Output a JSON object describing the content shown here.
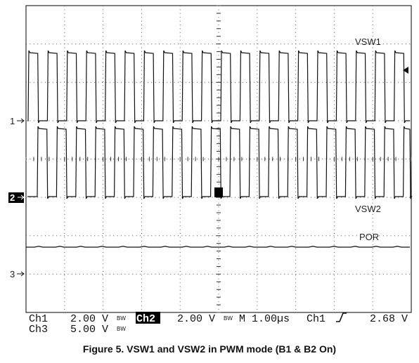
{
  "waveform_labels": [
    "VSW1",
    "VSW2",
    "POR"
  ],
  "channel_markers": [
    "1",
    "2",
    "3"
  ],
  "readout": {
    "row1": [
      "Ch1",
      "2.00 V",
      "BW",
      "Ch2",
      "2.00 V",
      "BW",
      "M 1.00µs",
      "Ch1",
      "2.68 V"
    ],
    "row2": [
      "Ch3",
      "5.00 V",
      "BW"
    ]
  },
  "caption": "Figure 5. VSW1 and VSW2 in PWM mode (B1 & B2 On)"
}
